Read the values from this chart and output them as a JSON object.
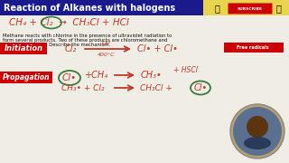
{
  "title": "Reaction of Alkanes with halogens",
  "title_color": "#FFFFFF",
  "title_bg": "#1a1a8c",
  "bg_color": "#f0ede5",
  "body_text_line1": "Methane reacts with chlorine in the presence of ultraviolet radiation to",
  "body_text_line2": "form several products. Two of these products are chloromethane and",
  "body_text_line3": "hydrogen chloride. Describe the mechanism.",
  "initiation_label": "Initiation",
  "initiation_bg": "#cc0000",
  "propagation_label": "Propagation",
  "propagation_bg": "#cc0000",
  "free_radicals_label": "Free radicals",
  "free_radicals_bg": "#cc0000",
  "dark_red": "#c0392b",
  "yellow_bg": "#f5d020",
  "label_text_color": "#FFFFFF",
  "subscribe_bg": "#cc0000"
}
